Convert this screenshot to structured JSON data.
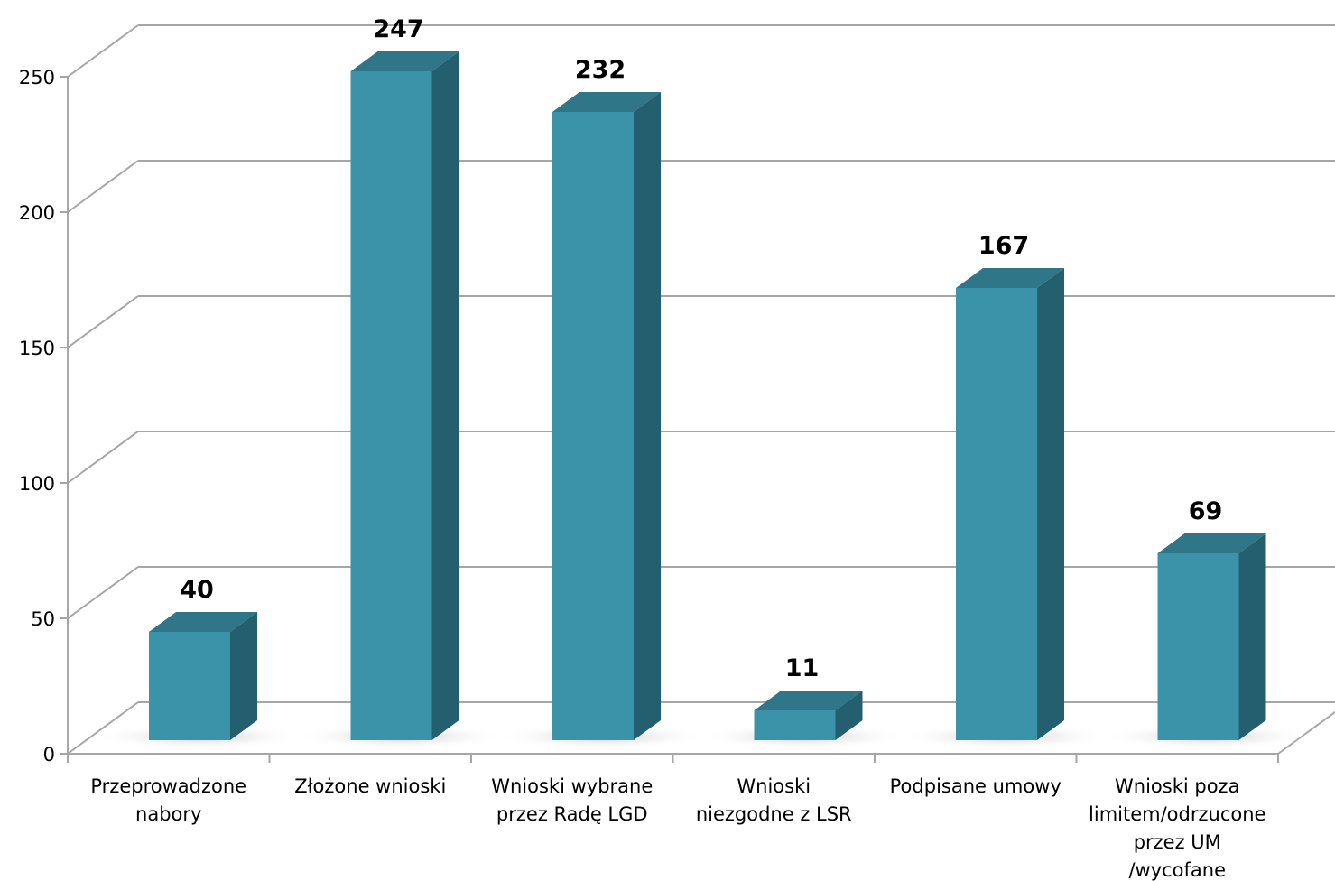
{
  "chart_data": {
    "type": "bar",
    "categories": [
      [
        "Przeprowadzone",
        "nabory"
      ],
      [
        "Złożone wnioski"
      ],
      [
        "Wnioski wybrane",
        "przez Radę LGD"
      ],
      [
        "Wnioski",
        "niezgodne z LSR"
      ],
      [
        "Podpisane umowy"
      ],
      [
        "Wnioski poza",
        "limitem/odrzucone",
        "przez UM",
        "/wycofane"
      ]
    ],
    "values": [
      40,
      247,
      232,
      11,
      167,
      69
    ],
    "data_labels": [
      "40",
      "247",
      "232",
      "11",
      "167",
      "69"
    ],
    "y_ticks": [
      "0",
      "50",
      "100",
      "150",
      "200",
      "250"
    ],
    "ylim": [
      0,
      250
    ],
    "grid": true,
    "legend": "none",
    "style": "3d-column",
    "colors": {
      "bar_front": "#3a93a8",
      "bar_side": "#235f6e",
      "bar_top": "#2f7689",
      "grid": "#a6a6a6",
      "floor_shadow": "#d9d9d9"
    }
  }
}
